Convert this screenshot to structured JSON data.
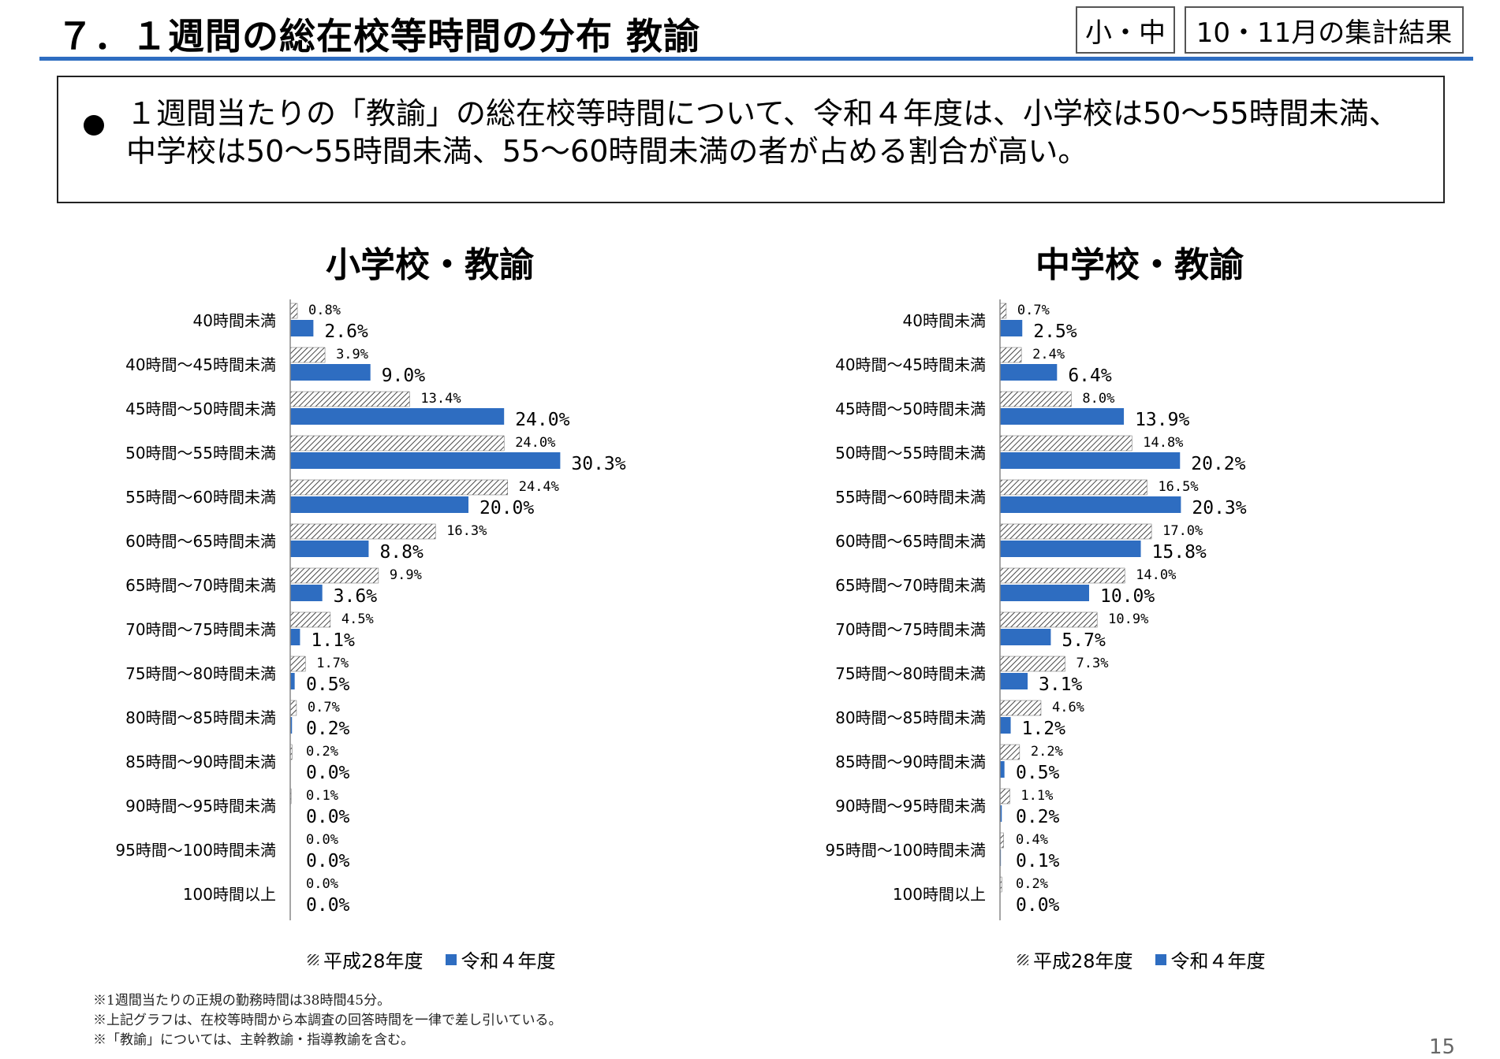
{
  "header": {
    "title": "７．１週間の総在校等時間の分布 教諭",
    "tag_a": "小・中",
    "tag_b": "10・11月の集計結果"
  },
  "summary": "１週間当たりの「教諭」の総在校等時間について、令和４年度は、小学校は50～55時間未満、中学校は50～55時間未満、55～60時間未満の者が占める割合が高い。",
  "chart_data": [
    {
      "type": "bar",
      "orientation": "horizontal",
      "title": "小学校・教諭",
      "unit": "%",
      "categories": [
        "40時間未満",
        "40時間～45時間未満",
        "45時間～50時間未満",
        "50時間～55時間未満",
        "55時間～60時間未満",
        "60時間～65時間未満",
        "65時間～70時間未満",
        "70時間～75時間未満",
        "75時間～80時間未満",
        "80時間～85時間未満",
        "85時間～90時間未満",
        "90時間～95時間未満",
        "95時間～100時間未満",
        "100時間以上"
      ],
      "series": [
        {
          "name": "平成28年度",
          "pattern": "hatched",
          "values": [
            0.8,
            3.9,
            13.4,
            24.0,
            24.4,
            16.3,
            9.9,
            4.5,
            1.7,
            0.7,
            0.2,
            0.1,
            0.0,
            0.0
          ],
          "labels": [
            "0.8%",
            "3.9%",
            "13.4%",
            "24.0%",
            "24.4%",
            "16.3%",
            "9.9%",
            "4.5%",
            "1.7%",
            "0.7%",
            "0.2%",
            "0.1%",
            "0.0%",
            "0.0%"
          ]
        },
        {
          "name": "令和４年度",
          "color": "#2e6dc1",
          "values": [
            2.6,
            9.0,
            24.0,
            30.3,
            20.0,
            8.8,
            3.6,
            1.1,
            0.5,
            0.2,
            0.0,
            0.0,
            0.0,
            0.0
          ],
          "labels": [
            "2.6%",
            "9.0%",
            "24.0%",
            "30.3%",
            "20.0%",
            "8.8%",
            "3.6%",
            "1.1%",
            "0.5%",
            "0.2%",
            "0.0%",
            "0.0%",
            "0.0%",
            "0.0%"
          ]
        }
      ],
      "legend": "bottom"
    },
    {
      "type": "bar",
      "orientation": "horizontal",
      "title": "中学校・教諭",
      "unit": "%",
      "categories": [
        "40時間未満",
        "40時間～45時間未満",
        "45時間～50時間未満",
        "50時間～55時間未満",
        "55時間～60時間未満",
        "60時間～65時間未満",
        "65時間～70時間未満",
        "70時間～75時間未満",
        "75時間～80時間未満",
        "80時間～85時間未満",
        "85時間～90時間未満",
        "90時間～95時間未満",
        "95時間～100時間未満",
        "100時間以上"
      ],
      "series": [
        {
          "name": "平成28年度",
          "pattern": "hatched",
          "values": [
            0.7,
            2.4,
            8.0,
            14.8,
            16.5,
            17.0,
            14.0,
            10.9,
            7.3,
            4.6,
            2.2,
            1.1,
            0.4,
            0.2
          ],
          "labels": [
            "0.7%",
            "2.4%",
            "8.0%",
            "14.8%",
            "16.5%",
            "17.0%",
            "14.0%",
            "10.9%",
            "7.3%",
            "4.6%",
            "2.2%",
            "1.1%",
            "0.4%",
            "0.2%"
          ]
        },
        {
          "name": "令和４年度",
          "color": "#2e6dc1",
          "values": [
            2.5,
            6.4,
            13.9,
            20.2,
            20.3,
            15.8,
            10.0,
            5.7,
            3.1,
            1.2,
            0.5,
            0.2,
            0.1,
            0.0
          ],
          "labels": [
            "2.5%",
            "6.4%",
            "13.9%",
            "20.2%",
            "20.3%",
            "15.8%",
            "10.0%",
            "5.7%",
            "3.1%",
            "1.2%",
            "0.5%",
            "0.2%",
            "0.1%",
            "0.0%"
          ]
        }
      ],
      "legend": "bottom"
    }
  ],
  "legend": {
    "old": "平成28年度",
    "new": "令和４年度"
  },
  "notes": [
    "※1週間当たりの正規の勤務時間は38時間45分。",
    "※上記グラフは、在校等時間から本調査の回答時間を一律で差し引いている。",
    "※「教諭」については、主幹教諭・指導教諭を含む。"
  ],
  "page_number": "15",
  "colors": {
    "accent": "#2e6dc1",
    "hatch": "#333333"
  }
}
